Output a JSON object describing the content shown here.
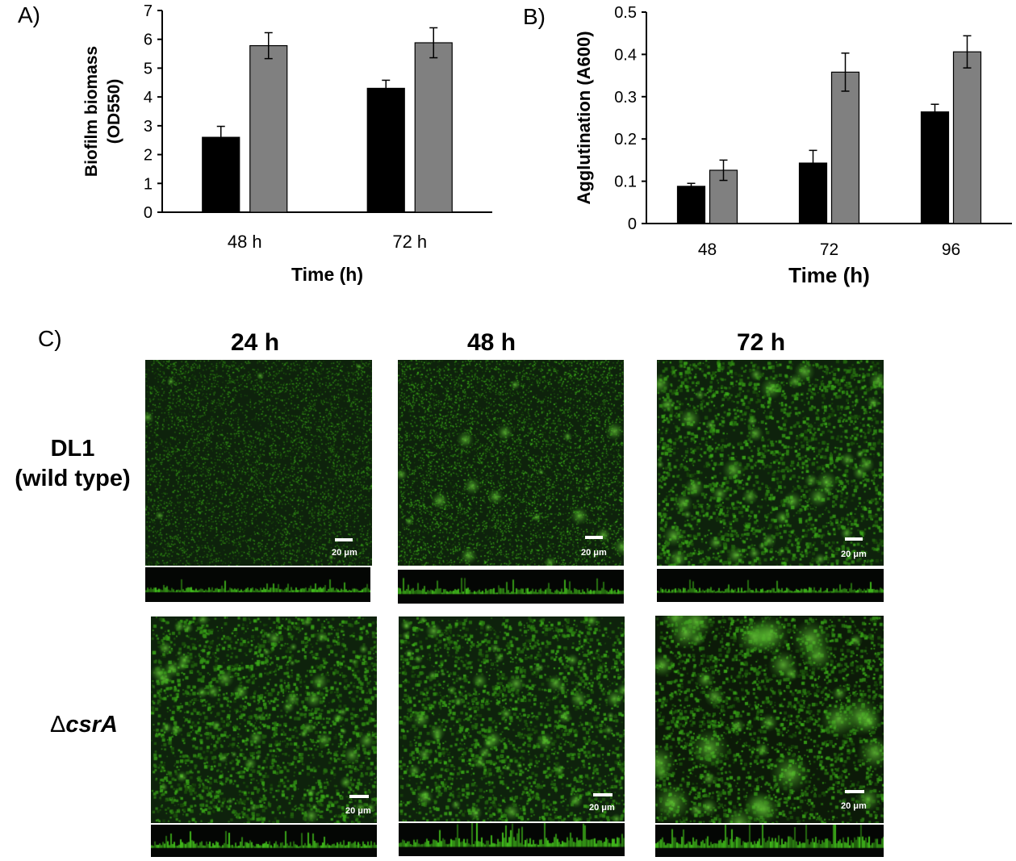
{
  "chart_data": [
    {
      "type": "bar",
      "panel": "A)",
      "categories": [
        "48 h",
        "72 h"
      ],
      "series": [
        {
          "color": "#000000",
          "values": [
            2.6,
            4.3
          ],
          "errors": [
            0.38,
            0.28
          ]
        },
        {
          "color": "#808080",
          "values": [
            5.78,
            5.88
          ],
          "errors": [
            0.45,
            0.52
          ]
        }
      ],
      "xlabel": "Time (h)",
      "ylabel_lines": [
        "Biofilm biomass",
        "(OD550)"
      ],
      "ylim": [
        0,
        7
      ],
      "yticks": [
        "0",
        "1",
        "2",
        "3",
        "4",
        "5",
        "6",
        "7"
      ],
      "grid": false
    },
    {
      "type": "bar",
      "panel": "B)",
      "categories": [
        "48",
        "72",
        "96"
      ],
      "series": [
        {
          "color": "#000000",
          "values": [
            0.088,
            0.143,
            0.264
          ],
          "errors": [
            0.007,
            0.03,
            0.018
          ]
        },
        {
          "color": "#808080",
          "values": [
            0.126,
            0.358,
            0.406
          ],
          "errors": [
            0.024,
            0.045,
            0.038
          ]
        }
      ],
      "xlabel": "Time (h)",
      "ylabel": "Agglutination (A600)",
      "ylim": [
        0,
        0.5
      ],
      "yticks": [
        "0",
        "0.1",
        "0.2",
        "0.3",
        "0.4",
        "0.5"
      ],
      "grid": false
    }
  ],
  "panel_c": {
    "letter": "C)",
    "time_headers": [
      "24 h",
      "48 h",
      "72 h"
    ],
    "rows": [
      {
        "label_line1": "DL1",
        "label_line2": "(wild type)"
      },
      {
        "delta": "Δ",
        "label_italic": "csrA"
      }
    ],
    "scale_text": "20 μm"
  }
}
